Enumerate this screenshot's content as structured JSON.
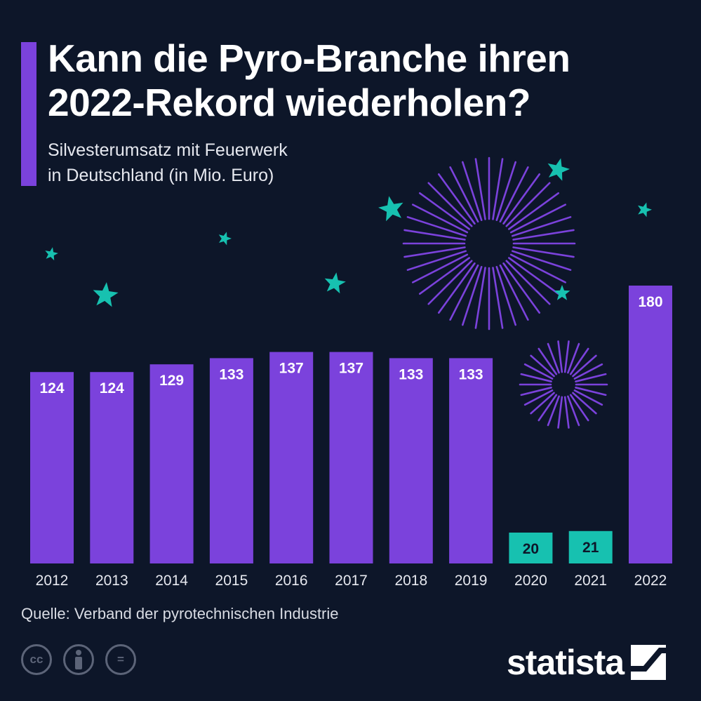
{
  "header": {
    "title_line1": "Kann die Pyro-Branche ihren",
    "title_line2": "2022-Rekord wiederholen?",
    "subtitle_line1": "Silvesterumsatz mit Feuerwerk",
    "subtitle_line2": "in Deutschland (in Mio. Euro)"
  },
  "chart_data": {
    "type": "bar",
    "title": "Kann die Pyro-Branche ihren 2022-Rekord wiederholen?",
    "subtitle": "Silvesterumsatz mit Feuerwerk in Deutschland (in Mio. Euro)",
    "categories": [
      "2012",
      "2013",
      "2014",
      "2015",
      "2016",
      "2017",
      "2018",
      "2019",
      "2020",
      "2021",
      "2022"
    ],
    "values": [
      124,
      124,
      129,
      133,
      137,
      137,
      133,
      133,
      20,
      21,
      180
    ],
    "highlight_categories": [
      "2020",
      "2021"
    ],
    "ylim": [
      0,
      180
    ],
    "xlabel": "",
    "ylabel": "",
    "grid": false,
    "legend": "none"
  },
  "colors": {
    "background": "#0d1629",
    "bar": "#7b42dc",
    "bar_highlight": "#17c1b0",
    "star": "#17c1b0",
    "firework": "#7b42dc",
    "text": "#ffffff"
  },
  "footer": {
    "source": "Quelle: Verband der pyrotechnischen Industrie",
    "license_icons": [
      "cc-icon",
      "attribution-icon",
      "no-derivatives-icon"
    ],
    "license_cc": "cc",
    "license_nd": "=",
    "logo": "statista"
  }
}
